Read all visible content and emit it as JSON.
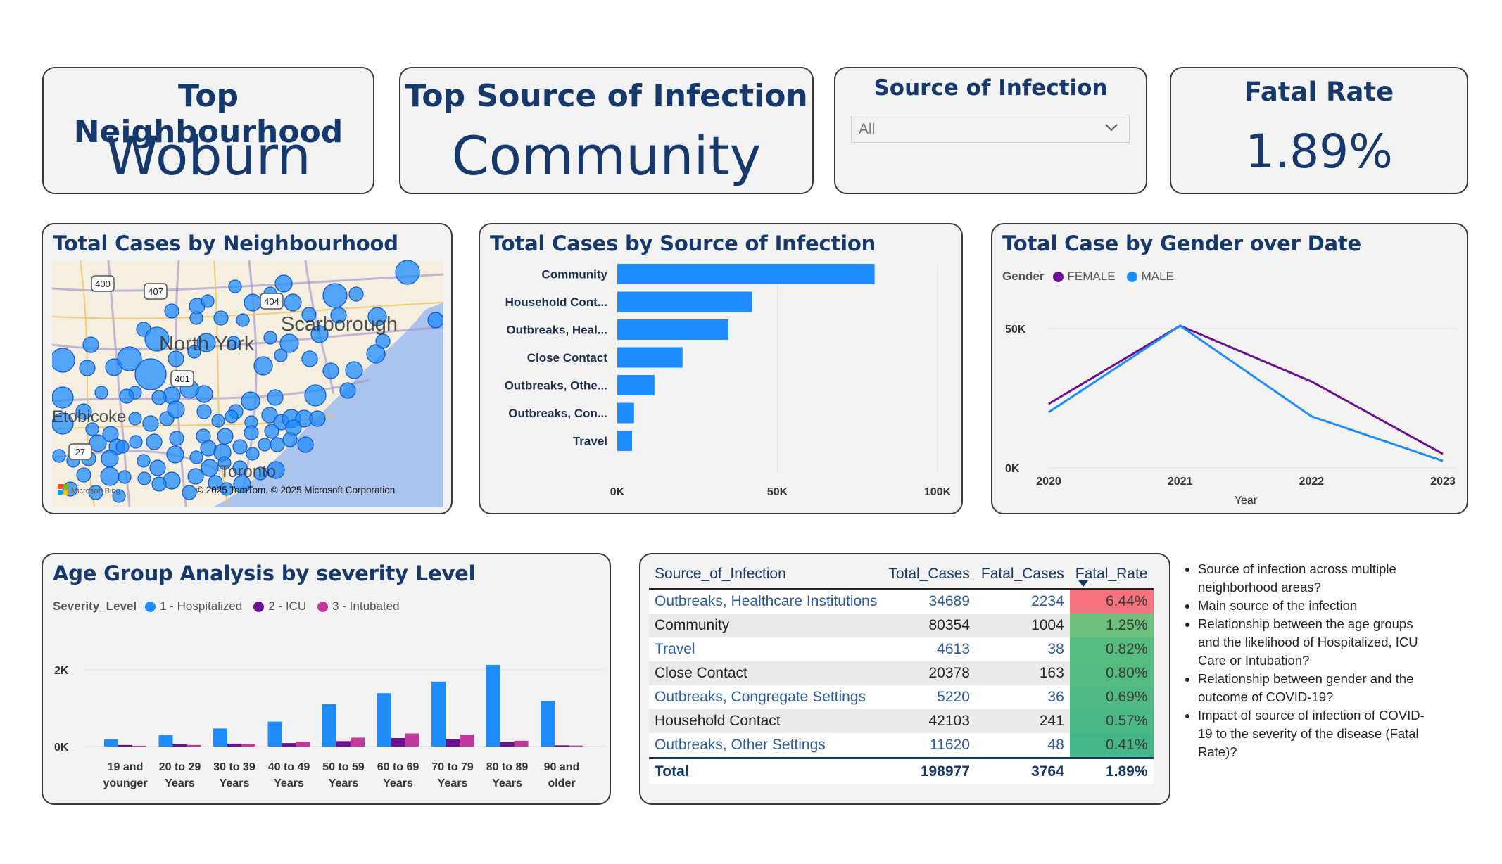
{
  "kpis": {
    "neighbourhood": {
      "title": "Top Neighbourhood",
      "value": "Woburn"
    },
    "source": {
      "title": "Top Source of Infection",
      "value": "Community"
    },
    "slicer": {
      "title": "Source of Infection",
      "value": "All"
    },
    "fatal": {
      "title": "Fatal Rate",
      "value": "1.89%"
    }
  },
  "map": {
    "title": "Total Cases by Neighbourhood",
    "labels": {
      "north_york": "North York",
      "scarborough": "Scarborough",
      "etobicoke": "Etobicoke",
      "toronto": "Toronto"
    },
    "highways": [
      "400",
      "407",
      "404",
      "401",
      "27"
    ],
    "bing": "Microsoft Bing",
    "copyright": "© 2025 TomTom, © 2025 Microsoft Corporation",
    "colors": {
      "water": "#aac4ee",
      "land": "#f5efe1",
      "bubble": "#1e8cff"
    }
  },
  "source_chart": {
    "title": "Total Cases by Source of Infection"
  },
  "gender_chart": {
    "title": "Total Case by Gender over Date",
    "legend_label": "Gender",
    "x_title": "Year"
  },
  "age_chart": {
    "title": "Age Group Analysis by severity Level",
    "legend_label": "Severity_Level"
  },
  "table": {
    "headers": [
      "Source_of_Infection",
      "Total_Cases",
      "Fatal_Cases",
      "Fatal_Rate"
    ],
    "rows": [
      {
        "source": "Outbreaks, Healthcare Institutions",
        "total": "34689",
        "fatal": "2234",
        "rate": "6.44%",
        "color": "#f5727f"
      },
      {
        "source": "Community",
        "total": "80354",
        "fatal": "1004",
        "rate": "1.25%",
        "color": "#6cc17d"
      },
      {
        "source": "Travel",
        "total": "4613",
        "fatal": "38",
        "rate": "0.82%",
        "color": "#56bd80"
      },
      {
        "source": "Close Contact",
        "total": "20378",
        "fatal": "163",
        "rate": "0.80%",
        "color": "#54bc80"
      },
      {
        "source": "Outbreaks, Congregate Settings",
        "total": "5220",
        "fatal": "36",
        "rate": "0.69%",
        "color": "#4fba82"
      },
      {
        "source": "Household Contact",
        "total": "42103",
        "fatal": "241",
        "rate": "0.57%",
        "color": "#4bb985"
      },
      {
        "source": "Outbreaks, Other Settings",
        "total": "11620",
        "fatal": "48",
        "rate": "0.41%",
        "color": "#45b786"
      }
    ],
    "total": {
      "label": "Total",
      "total": "198977",
      "fatal": "3764",
      "rate": "1.89%"
    }
  },
  "notes": [
    "Source of infection  across multiple neighborhood areas?",
    " Main source of the infection",
    "Relationship between the age groups and the likelihood of Hospitalized, ICU Care or Intubation?",
    "Relationship between gender and the outcome of COVID-19?",
    "Impact of source of infection of COVID-19 to the severity of the disease (Fatal Rate)?"
  ],
  "chart_data": [
    {
      "type": "bar",
      "orientation": "horizontal",
      "title": "Total Cases by Source of Infection",
      "categories": [
        "Community",
        "Household Cont...",
        "Outbreaks, Heal...",
        "Close Contact",
        "Outbreaks, Othe...",
        "Outbreaks, Con...",
        "Travel"
      ],
      "values": [
        80354,
        42103,
        34689,
        20378,
        11620,
        5220,
        4613
      ],
      "xlim": [
        0,
        100000
      ],
      "x_ticks": [
        "0K",
        "50K",
        "100K"
      ],
      "color": "#1e8cff"
    },
    {
      "type": "line",
      "title": "Total Case by Gender over Date",
      "x": [
        "2020",
        "2021",
        "2022",
        "2023"
      ],
      "xlabel": "Year",
      "ylim": [
        0,
        55000
      ],
      "y_ticks": [
        "0K",
        "50K"
      ],
      "legend": "top-left",
      "series": [
        {
          "name": "FEMALE",
          "color": "#6a0f8e",
          "values": [
            23000,
            51000,
            31000,
            5000
          ]
        },
        {
          "name": "MALE",
          "color": "#1e8cff",
          "values": [
            20000,
            51000,
            18500,
            2500
          ]
        }
      ]
    },
    {
      "type": "bar",
      "title": "Age Group Analysis by severity Level",
      "categories": [
        [
          "19 and",
          "younger"
        ],
        [
          "20 to 29",
          "Years"
        ],
        [
          "30 to 39",
          "Years"
        ],
        [
          "40 to 49",
          "Years"
        ],
        [
          "50 to 59",
          "Years"
        ],
        [
          "60 to 69",
          "Years"
        ],
        [
          "70 to 79",
          "Years"
        ],
        [
          "80 to 89",
          "Years"
        ],
        [
          "90 and",
          "older"
        ]
      ],
      "ylim": [
        0,
        2400
      ],
      "y_ticks": [
        {
          "v": 0,
          "t": "0K"
        },
        {
          "v": 2000,
          "t": "2K"
        }
      ],
      "legend": "top-left",
      "series": [
        {
          "name": "1 - Hospitalized",
          "color": "#1e8cff",
          "values": [
            190,
            300,
            470,
            650,
            1100,
            1390,
            1690,
            2130,
            1190
          ]
        },
        {
          "name": "2 - ICU",
          "color": "#6a0f8e",
          "values": [
            40,
            55,
            75,
            90,
            140,
            220,
            190,
            110,
            30
          ]
        },
        {
          "name": "3 - Intubated",
          "color": "#c2399b",
          "values": [
            20,
            40,
            65,
            120,
            230,
            340,
            310,
            150,
            25
          ]
        }
      ]
    },
    {
      "type": "scatter",
      "title": "Total Cases by Neighbourhood",
      "note": "bubble map of neighbourhood case totals"
    }
  ]
}
